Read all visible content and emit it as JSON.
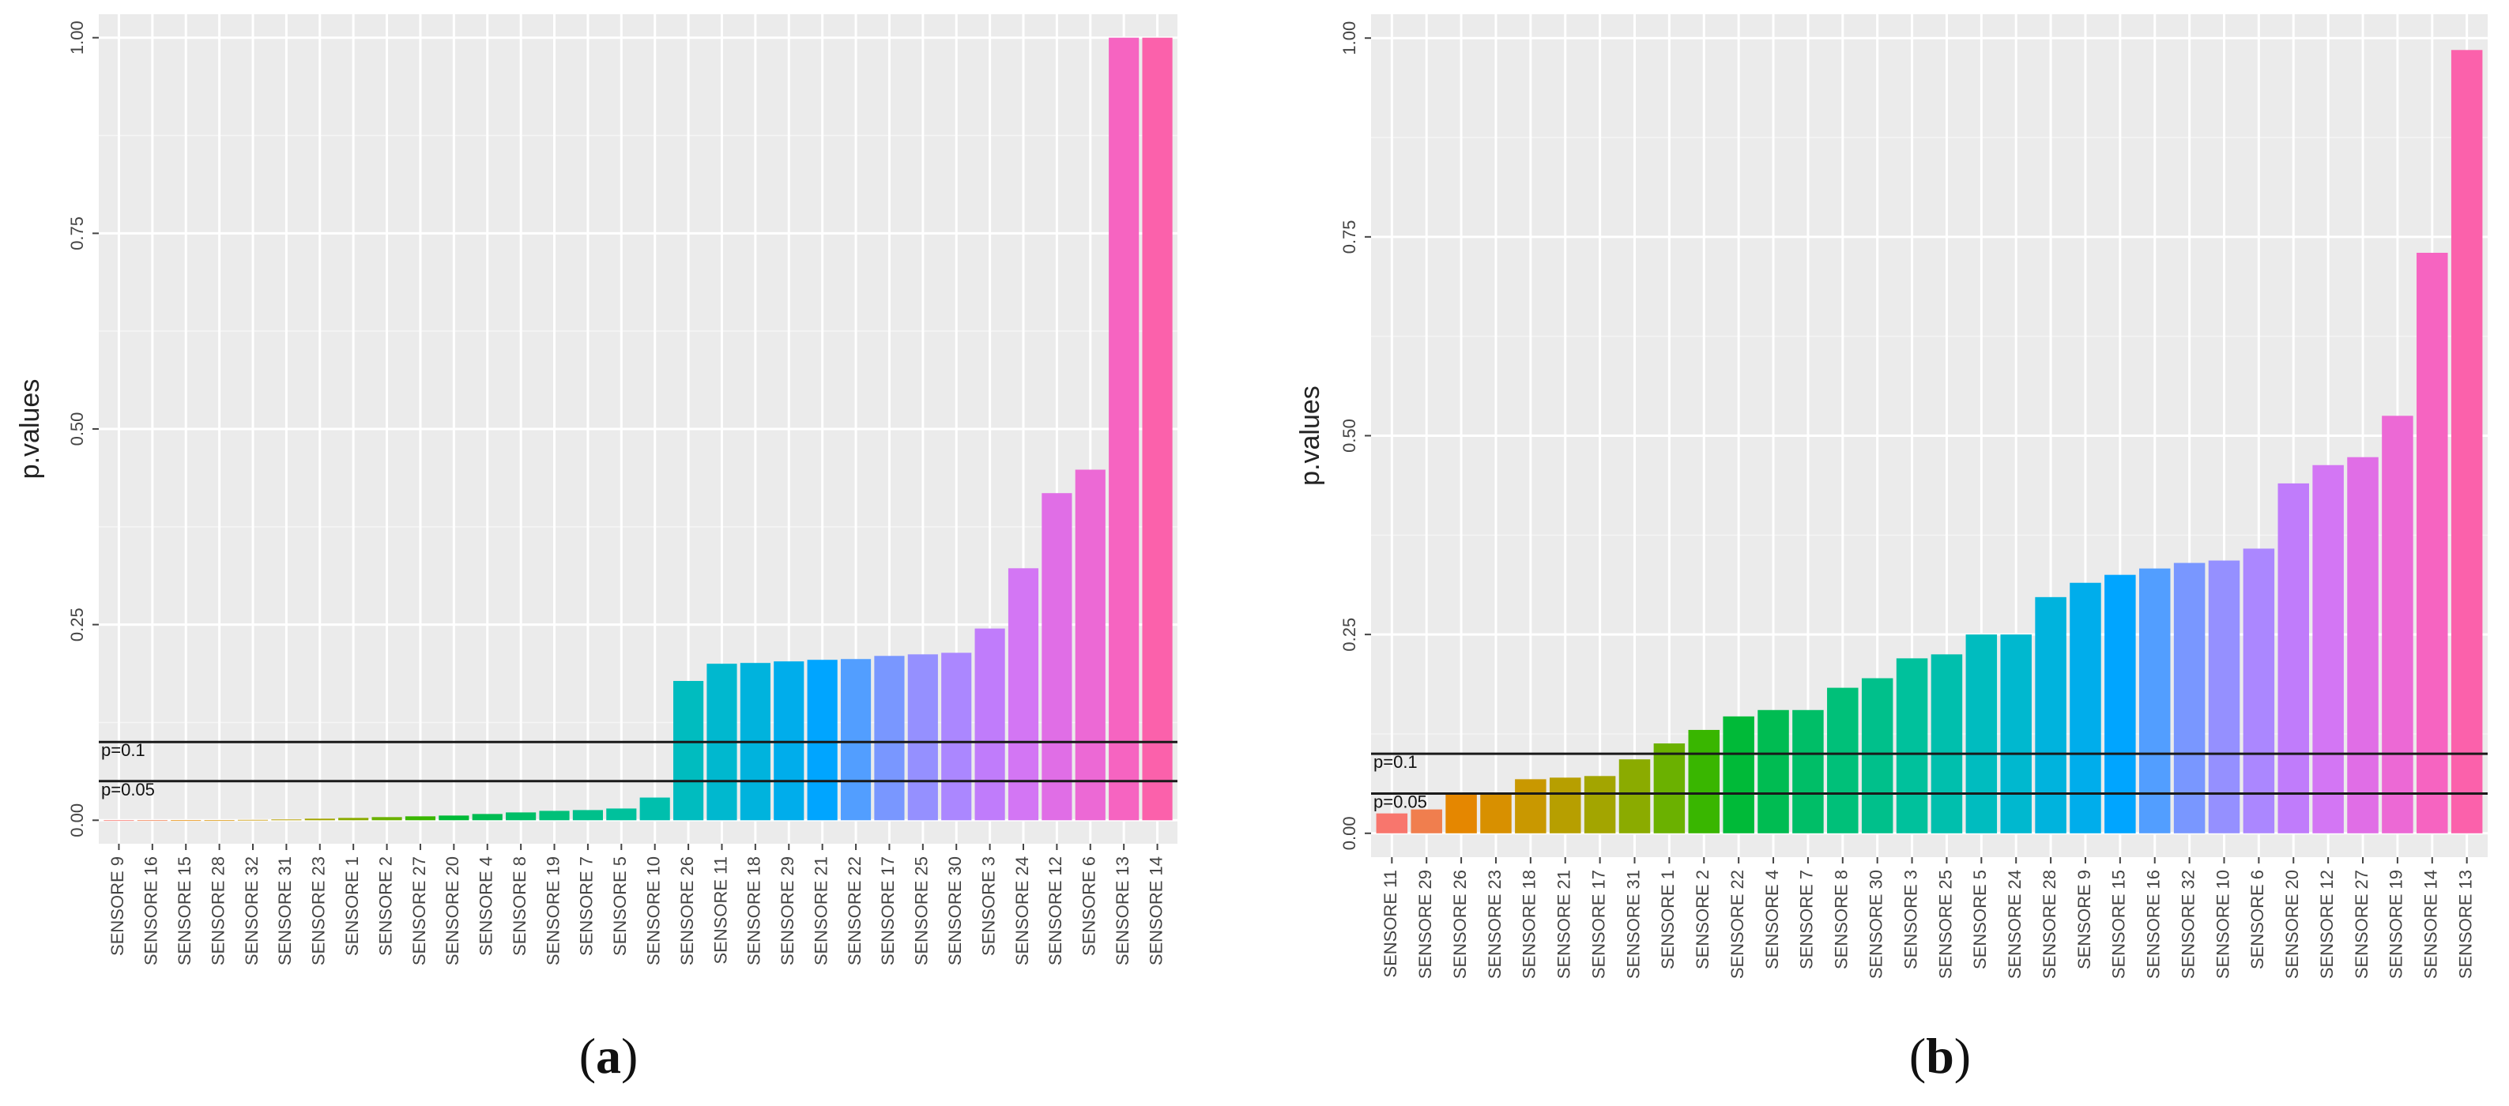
{
  "chart_data": [
    {
      "type": "bar",
      "panel": "(a)",
      "caption_letter": "a",
      "ylabel": "p.values",
      "xlabel": "",
      "ylim": [
        -0.03,
        1.03
      ],
      "yticks": [
        "0.00",
        "0.25",
        "0.50",
        "0.75",
        "1.00"
      ],
      "ytick_values": [
        0,
        0.25,
        0.5,
        0.75,
        1.0
      ],
      "reference_lines": [
        {
          "label": "p=0.1",
          "value": 0.1
        },
        {
          "label": "p=0.05",
          "value": 0.05
        }
      ],
      "categories": [
        "SENSORE 9",
        "SENSORE 16",
        "SENSORE 15",
        "SENSORE 28",
        "SENSORE 32",
        "SENSORE 31",
        "SENSORE 23",
        "SENSORE 1",
        "SENSORE 2",
        "SENSORE 27",
        "SENSORE 20",
        "SENSORE 4",
        "SENSORE 8",
        "SENSORE 19",
        "SENSORE 7",
        "SENSORE 5",
        "SENSORE 10",
        "SENSORE 26",
        "SENSORE 11",
        "SENSORE 18",
        "SENSORE 29",
        "SENSORE 21",
        "SENSORE 22",
        "SENSORE 17",
        "SENSORE 25",
        "SENSORE 30",
        "SENSORE 3",
        "SENSORE 24",
        "SENSORE 12",
        "SENSORE 6",
        "SENSORE 13",
        "SENSORE 14"
      ],
      "values": [
        0.0,
        0.0,
        0.0,
        0.0,
        0.0005,
        0.001,
        0.002,
        0.003,
        0.004,
        0.005,
        0.006,
        0.008,
        0.01,
        0.012,
        0.013,
        0.015,
        0.029,
        0.178,
        0.2,
        0.201,
        0.203,
        0.205,
        0.206,
        0.21,
        0.212,
        0.214,
        0.245,
        0.322,
        0.418,
        0.448,
        1.0,
        1.0
      ],
      "colors": [
        "#f8766d",
        "#f07e4e",
        "#e58700",
        "#d89000",
        "#c99800",
        "#b79f00",
        "#a3a500",
        "#8bab00",
        "#6bb100",
        "#39b600",
        "#00ba38",
        "#00bc52",
        "#00be67",
        "#00c079",
        "#00c08b",
        "#00c19c",
        "#00bfad",
        "#00bcbf",
        "#00b8cf",
        "#00b3dd",
        "#00adeb",
        "#00a5ff",
        "#529eff",
        "#7997ff",
        "#9590ff",
        "#ab87ff",
        "#c07cfb",
        "#d376f4",
        "#e06ee6",
        "#ec69d5",
        "#f664c1",
        "#fb61ab"
      ]
    },
    {
      "type": "bar",
      "panel": "(b)",
      "caption_letter": "b",
      "ylabel": "p.values",
      "xlabel": "",
      "ylim": [
        -0.03,
        1.03
      ],
      "yticks": [
        "0.00",
        "0.25",
        "0.50",
        "0.75",
        "1.00"
      ],
      "ytick_values": [
        0,
        0.25,
        0.5,
        0.75,
        1.0
      ],
      "reference_lines": [
        {
          "label": "p=0.1",
          "value": 0.1
        },
        {
          "label": "p=0.05",
          "value": 0.05
        }
      ],
      "categories": [
        "SENSORE 11",
        "SENSORE 29",
        "SENSORE 26",
        "SENSORE 23",
        "SENSORE 18",
        "SENSORE 21",
        "SENSORE 17",
        "SENSORE 31",
        "SENSORE 1",
        "SENSORE 2",
        "SENSORE 22",
        "SENSORE 4",
        "SENSORE 7",
        "SENSORE 8",
        "SENSORE 30",
        "SENSORE 3",
        "SENSORE 25",
        "SENSORE 5",
        "SENSORE 24",
        "SENSORE 28",
        "SENSORE 9",
        "SENSORE 15",
        "SENSORE 16",
        "SENSORE 32",
        "SENSORE 10",
        "SENSORE 6",
        "SENSORE 20",
        "SENSORE 12",
        "SENSORE 27",
        "SENSORE 19",
        "SENSORE 14",
        "SENSORE 13"
      ],
      "values": [
        0.025,
        0.03,
        0.05,
        0.05,
        0.068,
        0.07,
        0.072,
        0.093,
        0.113,
        0.13,
        0.147,
        0.155,
        0.155,
        0.183,
        0.195,
        0.22,
        0.225,
        0.25,
        0.25,
        0.297,
        0.315,
        0.325,
        0.333,
        0.34,
        0.343,
        0.358,
        0.44,
        0.463,
        0.473,
        0.525,
        0.73,
        0.985
      ],
      "colors": [
        "#f8766d",
        "#f07e4e",
        "#e58700",
        "#d89000",
        "#c99800",
        "#b79f00",
        "#a3a500",
        "#8bab00",
        "#6bb100",
        "#39b600",
        "#00ba38",
        "#00bc52",
        "#00be67",
        "#00c079",
        "#00c08b",
        "#00c19c",
        "#00bfad",
        "#00bcbf",
        "#00b8cf",
        "#00b3dd",
        "#00adeb",
        "#00a5ff",
        "#529eff",
        "#7997ff",
        "#9590ff",
        "#ab87ff",
        "#c07cfb",
        "#d376f4",
        "#e06ee6",
        "#ec69d5",
        "#f664c1",
        "#fb61ab"
      ]
    }
  ]
}
